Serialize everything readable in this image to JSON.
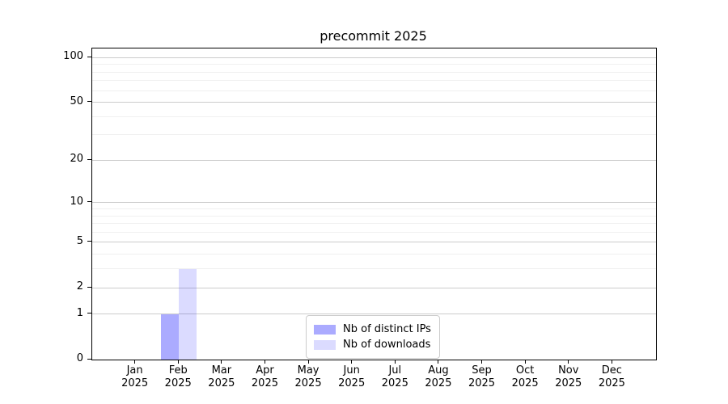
{
  "chart_data": {
    "type": "bar",
    "title": "precommit 2025",
    "categories": [
      "Jan",
      "Feb",
      "Mar",
      "Apr",
      "May",
      "Jun",
      "Jul",
      "Aug",
      "Sep",
      "Oct",
      "Nov",
      "Dec"
    ],
    "category_year": "2025",
    "series": [
      {
        "name": "Nb of distinct IPs",
        "color": "rgba(0,0,255,0.33)",
        "values": [
          0,
          1,
          0,
          0,
          0,
          0,
          0,
          0,
          0,
          0,
          0,
          0
        ]
      },
      {
        "name": "Nb of downloads",
        "color": "rgba(0,0,255,0.14)",
        "values": [
          0,
          3,
          0,
          0,
          0,
          0,
          0,
          0,
          0,
          0,
          0,
          0
        ]
      }
    ],
    "xlabel": "",
    "ylabel": "",
    "y_scale": "log1p",
    "y_tick_labels": [
      0,
      1,
      2,
      5,
      10,
      20,
      50,
      100
    ],
    "y_minor_gridlines": [
      3,
      4,
      6,
      7,
      8,
      9,
      30,
      40,
      60,
      70,
      80,
      90
    ],
    "ylim": [
      0,
      115
    ],
    "grid": {
      "major_color": "#cccccc",
      "minor_color": "#f0f0f0"
    },
    "legend_position": "lower center inside"
  }
}
